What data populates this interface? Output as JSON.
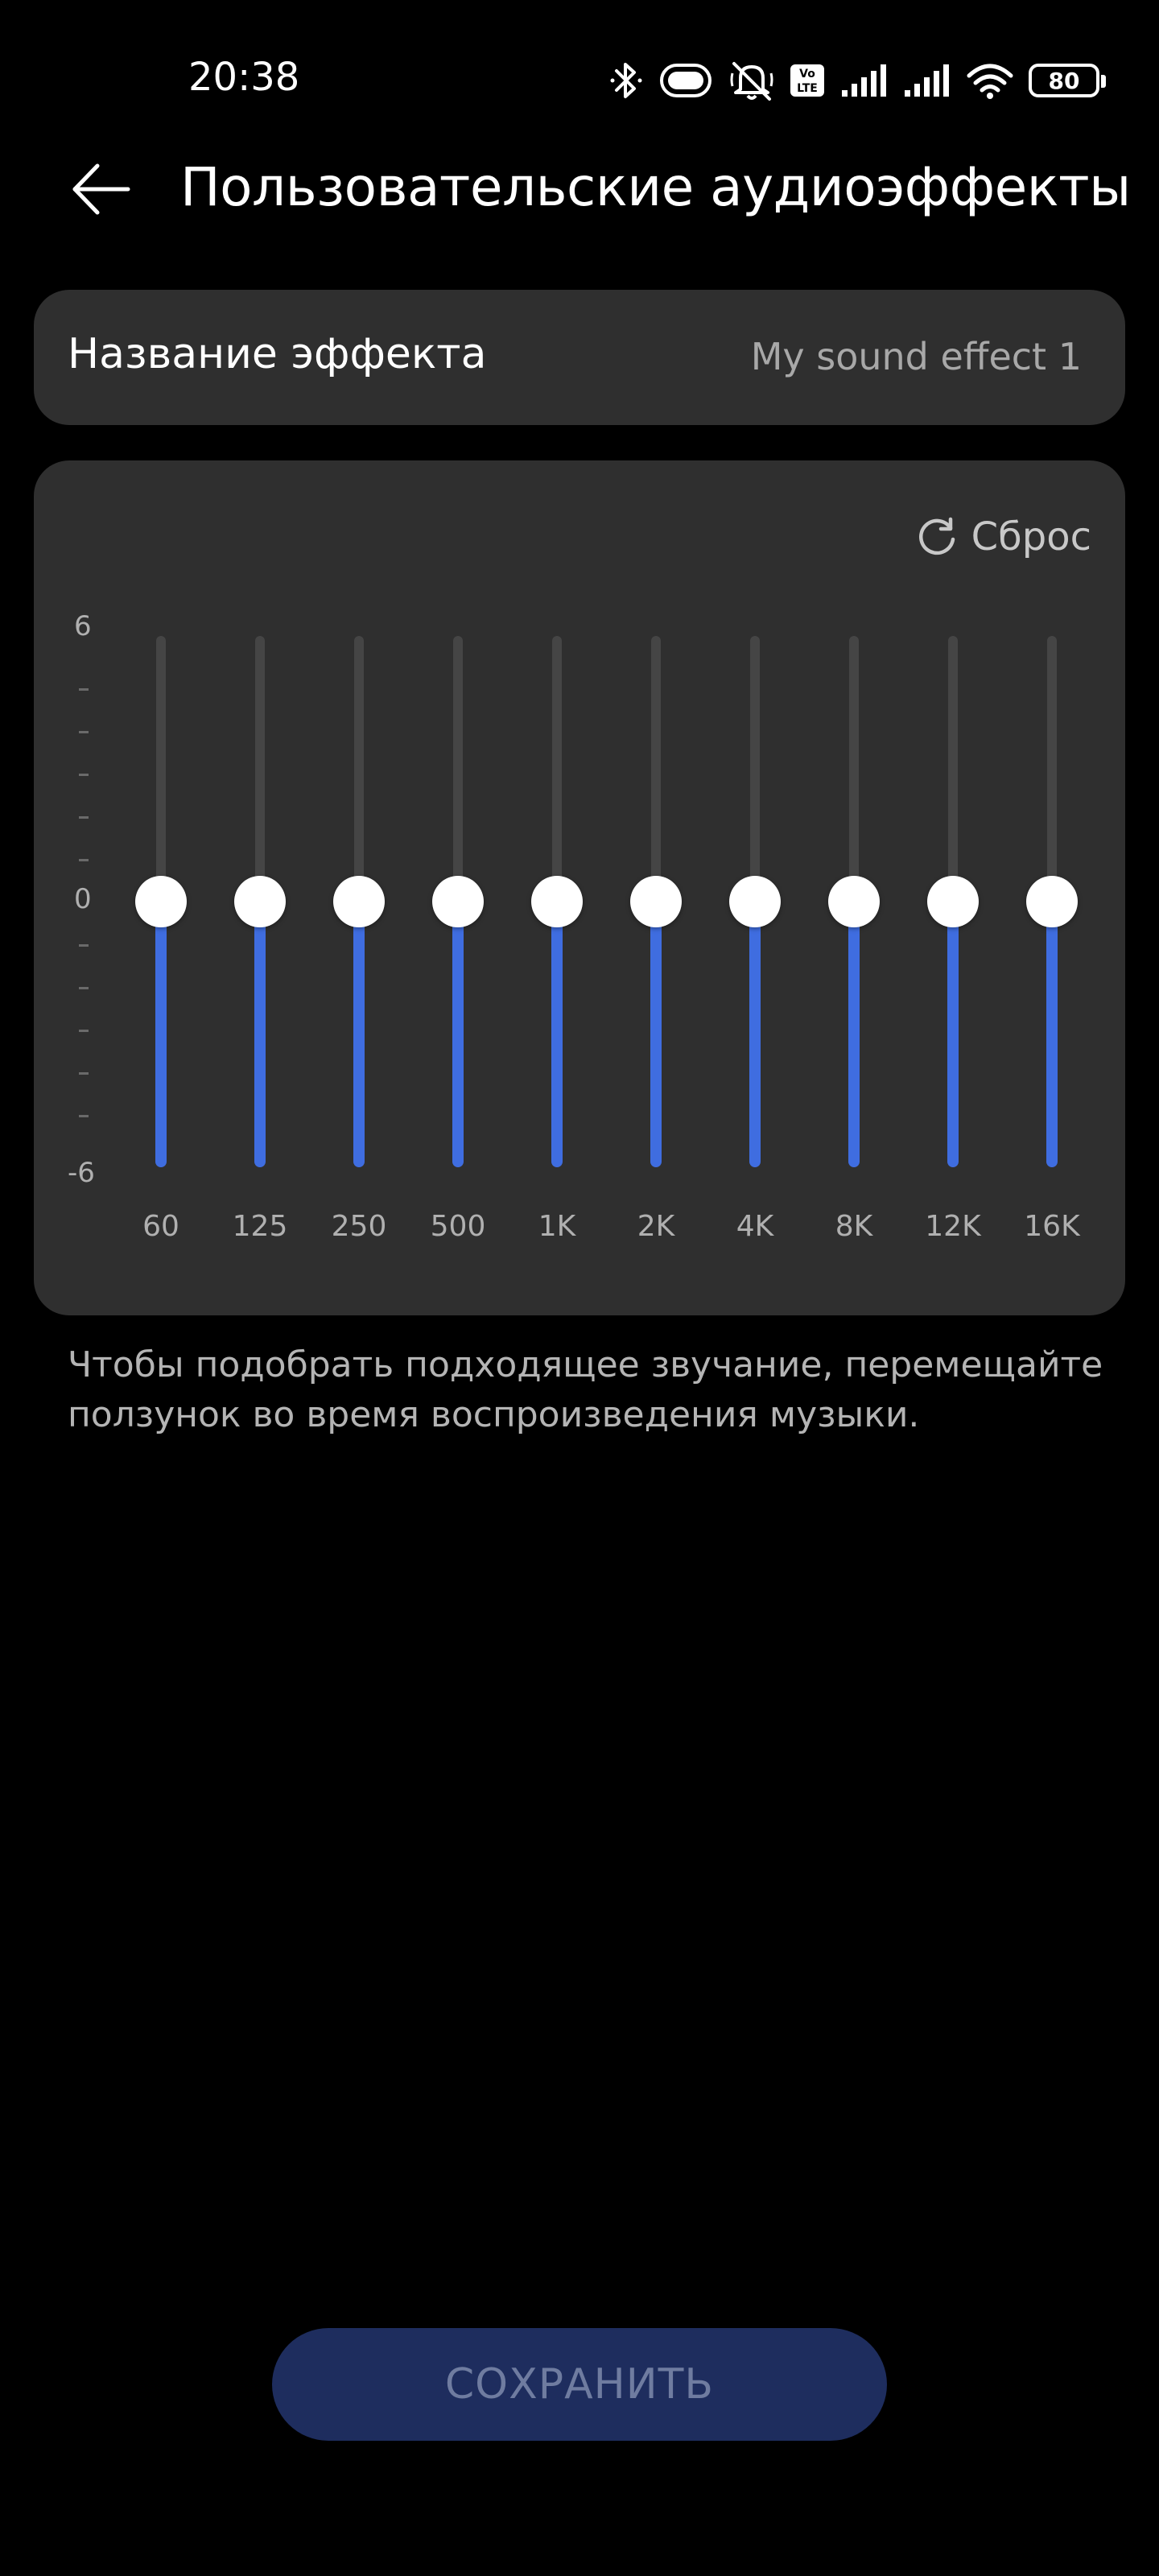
{
  "status_bar": {
    "time": "20:38",
    "icons": [
      "bluetooth-icon",
      "vibrate-icon",
      "mute-icon",
      "volte-icon",
      "signal-1-icon",
      "signal-2-icon",
      "wifi-icon",
      "battery-icon"
    ],
    "volte_text_top": "Vo",
    "volte_text_bottom": "LTE",
    "battery": "80"
  },
  "header": {
    "back_icon": "arrow-left-icon",
    "title": "Пользовательские аудиоэффекты"
  },
  "effect_name": {
    "label": "Название эффекта",
    "value": "My sound effect 1"
  },
  "equalizer": {
    "reset_label": "Сброс",
    "reset_icon": "refresh-icon",
    "y_max_label": "6",
    "y_mid_label": "0",
    "y_min_label": "-6",
    "range": [
      -6,
      6
    ],
    "accent_color": "#3f6de0",
    "bands": [
      {
        "label": "60",
        "value": 0
      },
      {
        "label": "125",
        "value": 0
      },
      {
        "label": "250",
        "value": 0
      },
      {
        "label": "500",
        "value": 0
      },
      {
        "label": "1K",
        "value": 0
      },
      {
        "label": "2K",
        "value": 0
      },
      {
        "label": "4K",
        "value": 0
      },
      {
        "label": "8K",
        "value": 0
      },
      {
        "label": "12K",
        "value": 0
      },
      {
        "label": "16K",
        "value": 0
      }
    ]
  },
  "hint": "Чтобы подобрать подходящее звучание, перемещайте ползунок во время воспроизведения музыки.",
  "save_button": {
    "label": "СОХРАНИТЬ",
    "color": "#1e2d5e"
  }
}
